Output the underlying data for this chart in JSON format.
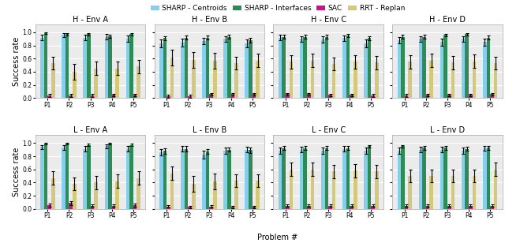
{
  "subplot_titles_row0": [
    "H - Env A",
    "H - Env B",
    "H - Env C",
    "H - Env D"
  ],
  "subplot_titles_row1": [
    "L - Env A",
    "L - Env B",
    "L - Env C",
    "L - Env D"
  ],
  "problems": [
    "P1",
    "P2",
    "P3",
    "P4",
    "P5"
  ],
  "series_labels": [
    "SHARP - Centroids",
    "SHARP - Interfaces",
    "SAC",
    "RRT - Replan"
  ],
  "colors": [
    "#87CEEB",
    "#2D8B57",
    "#C8148C",
    "#D4C87A"
  ],
  "bar_width": 0.17,
  "data": {
    "H - Env A": {
      "means": [
        [
          0.92,
          0.96,
          0.92,
          0.93,
          0.9
        ],
        [
          0.99,
          0.97,
          0.97,
          0.94,
          0.97
        ],
        [
          0.04,
          0.04,
          0.04,
          0.05,
          0.05
        ],
        [
          0.53,
          0.4,
          0.45,
          0.45,
          0.48
        ]
      ],
      "errs": [
        [
          0.04,
          0.03,
          0.04,
          0.04,
          0.05
        ],
        [
          0.01,
          0.02,
          0.02,
          0.02,
          0.02
        ],
        [
          0.02,
          0.02,
          0.02,
          0.02,
          0.02
        ],
        [
          0.1,
          0.12,
          0.1,
          0.1,
          0.1
        ]
      ]
    },
    "H - Env B": {
      "means": [
        [
          0.83,
          0.84,
          0.87,
          0.9,
          0.83
        ],
        [
          0.91,
          0.92,
          0.92,
          0.93,
          0.88
        ],
        [
          0.03,
          0.03,
          0.06,
          0.06,
          0.06
        ],
        [
          0.62,
          0.58,
          0.57,
          0.53,
          0.57
        ]
      ],
      "errs": [
        [
          0.06,
          0.06,
          0.05,
          0.04,
          0.06
        ],
        [
          0.03,
          0.03,
          0.03,
          0.03,
          0.04
        ],
        [
          0.02,
          0.02,
          0.02,
          0.02,
          0.02
        ],
        [
          0.12,
          0.12,
          0.12,
          0.1,
          0.1
        ]
      ]
    },
    "H - Env C": {
      "means": [
        [
          0.92,
          0.9,
          0.89,
          0.91,
          0.83
        ],
        [
          0.93,
          0.93,
          0.93,
          0.95,
          0.91
        ],
        [
          0.06,
          0.06,
          0.05,
          0.05,
          0.04
        ],
        [
          0.55,
          0.57,
          0.52,
          0.55,
          0.54
        ]
      ],
      "errs": [
        [
          0.04,
          0.04,
          0.05,
          0.04,
          0.06
        ],
        [
          0.03,
          0.03,
          0.03,
          0.02,
          0.03
        ],
        [
          0.02,
          0.02,
          0.02,
          0.02,
          0.02
        ],
        [
          0.1,
          0.1,
          0.1,
          0.1,
          0.1
        ]
      ]
    },
    "H - Env D": {
      "means": [
        [
          0.88,
          0.9,
          0.85,
          0.9,
          0.85
        ],
        [
          0.93,
          0.93,
          0.96,
          0.97,
          0.92
        ],
        [
          0.04,
          0.05,
          0.05,
          0.05,
          0.06
        ],
        [
          0.55,
          0.57,
          0.54,
          0.56,
          0.53
        ]
      ],
      "errs": [
        [
          0.05,
          0.04,
          0.05,
          0.04,
          0.05
        ],
        [
          0.03,
          0.03,
          0.02,
          0.02,
          0.03
        ],
        [
          0.02,
          0.02,
          0.02,
          0.02,
          0.02
        ],
        [
          0.1,
          0.1,
          0.1,
          0.1,
          0.1
        ]
      ]
    },
    "L - Env A": {
      "means": [
        [
          0.94,
          0.93,
          0.91,
          0.95,
          0.91
        ],
        [
          0.99,
          0.99,
          0.97,
          0.99,
          0.97
        ],
        [
          0.06,
          0.09,
          0.05,
          0.05,
          0.06
        ],
        [
          0.47,
          0.38,
          0.4,
          0.42,
          0.47
        ]
      ],
      "errs": [
        [
          0.03,
          0.04,
          0.04,
          0.03,
          0.04
        ],
        [
          0.01,
          0.01,
          0.02,
          0.01,
          0.02
        ],
        [
          0.02,
          0.03,
          0.02,
          0.02,
          0.02
        ],
        [
          0.1,
          0.1,
          0.1,
          0.1,
          0.1
        ]
      ]
    },
    "L - Env B": {
      "means": [
        [
          0.86,
          0.91,
          0.82,
          0.88,
          0.9
        ],
        [
          0.88,
          0.91,
          0.87,
          0.9,
          0.89
        ],
        [
          0.04,
          0.03,
          0.04,
          0.03,
          0.03
        ],
        [
          0.54,
          0.38,
          0.42,
          0.43,
          0.43
        ]
      ],
      "errs": [
        [
          0.05,
          0.04,
          0.06,
          0.05,
          0.04
        ],
        [
          0.04,
          0.04,
          0.04,
          0.03,
          0.04
        ],
        [
          0.02,
          0.02,
          0.02,
          0.02,
          0.02
        ],
        [
          0.1,
          0.12,
          0.12,
          0.1,
          0.1
        ]
      ]
    },
    "L - Env C": {
      "means": [
        [
          0.88,
          0.9,
          0.88,
          0.91,
          0.88
        ],
        [
          0.92,
          0.92,
          0.92,
          0.92,
          0.95
        ],
        [
          0.05,
          0.05,
          0.05,
          0.05,
          0.05
        ],
        [
          0.6,
          0.6,
          0.57,
          0.58,
          0.57
        ]
      ],
      "errs": [
        [
          0.05,
          0.04,
          0.05,
          0.04,
          0.05
        ],
        [
          0.03,
          0.03,
          0.03,
          0.03,
          0.02
        ],
        [
          0.02,
          0.02,
          0.02,
          0.02,
          0.02
        ],
        [
          0.1,
          0.1,
          0.1,
          0.1,
          0.1
        ]
      ]
    },
    "L - Env D": {
      "means": [
        [
          0.88,
          0.9,
          0.9,
          0.88,
          0.92
        ],
        [
          0.95,
          0.93,
          0.93,
          0.91,
          0.93
        ],
        [
          0.05,
          0.05,
          0.05,
          0.05,
          0.05
        ],
        [
          0.5,
          0.5,
          0.5,
          0.5,
          0.6
        ]
      ],
      "errs": [
        [
          0.05,
          0.04,
          0.04,
          0.05,
          0.04
        ],
        [
          0.02,
          0.03,
          0.03,
          0.03,
          0.03
        ],
        [
          0.02,
          0.02,
          0.02,
          0.02,
          0.02
        ],
        [
          0.1,
          0.1,
          0.1,
          0.1,
          0.1
        ]
      ]
    }
  },
  "xlabel": "Problem #",
  "ylabel": "Success rate",
  "ylim": [
    0.0,
    1.12
  ],
  "yticks": [
    0.0,
    0.2,
    0.4,
    0.6,
    0.8,
    1.0
  ],
  "title_fontsize": 7,
  "tick_fontsize": 5.5,
  "label_fontsize": 7,
  "legend_fontsize": 6.5,
  "background_color": "#FFFFFF"
}
